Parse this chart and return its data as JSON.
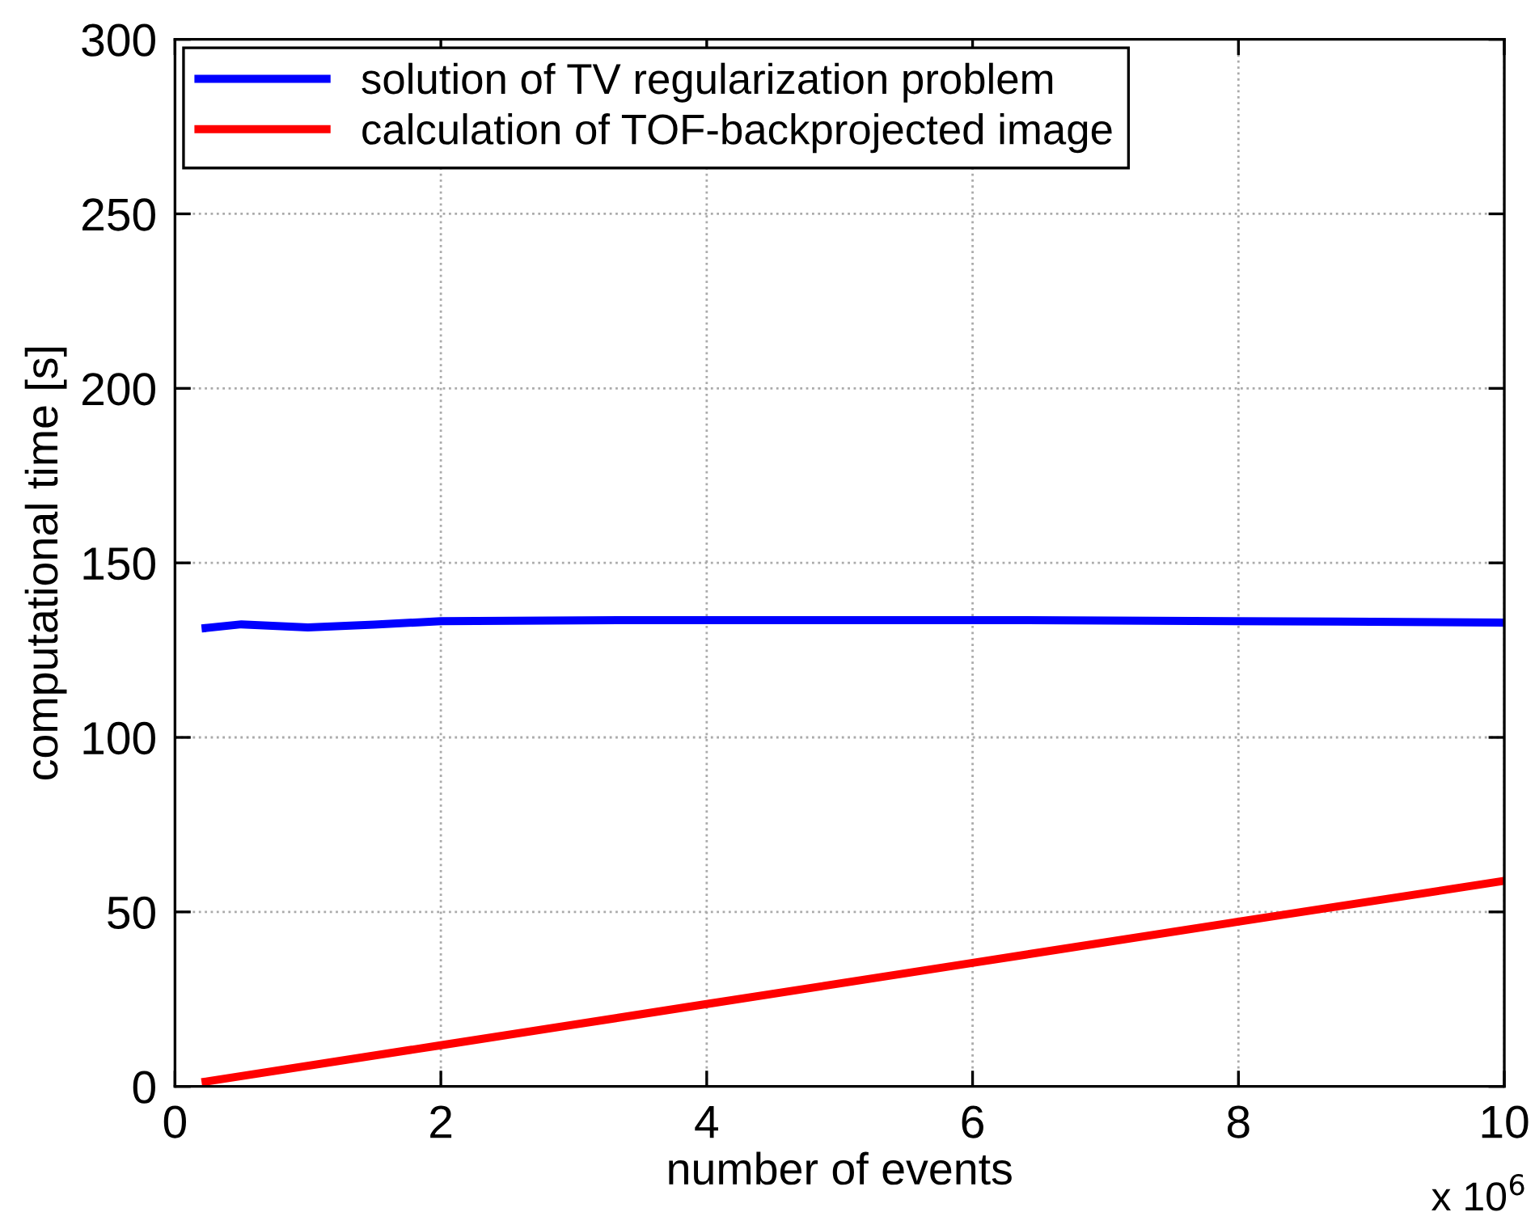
{
  "chart_data": {
    "type": "line",
    "xlabel": "number of events",
    "ylabel": "computational time [s]",
    "series": [
      {
        "name": "solution of TV regularization problem",
        "color": "#0000ff",
        "x": [
          0.2,
          0.5,
          1.0,
          1.5,
          2.0,
          3.5,
          6.25,
          8.75,
          10
        ],
        "values": [
          131.2,
          132.4,
          131.5,
          132.3,
          133.3,
          133.6,
          133.6,
          133.2,
          132.9
        ]
      },
      {
        "name": "calculation of TOF-backprojected image",
        "color": "#ff0000",
        "x": [
          0.2,
          2,
          4,
          6,
          8,
          10
        ],
        "values": [
          1.2,
          11.8,
          23.6,
          35.4,
          47.2,
          58.9
        ]
      }
    ],
    "xlim": [
      0,
      10
    ],
    "xticks": [
      0,
      2,
      4,
      6,
      8,
      10
    ],
    "ylim": [
      0,
      300
    ],
    "yticks": [
      0,
      50,
      100,
      150,
      200,
      250,
      300
    ],
    "annotations": [
      "x 10$^{6}$"
    ],
    "grid": true,
    "legend": "top left",
    "line_style": "solid"
  }
}
